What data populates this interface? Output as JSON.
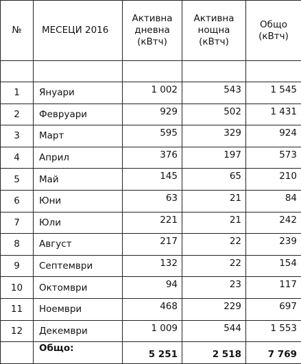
{
  "header": {
    "no": "№",
    "month": "МЕСЕЦИ 2016",
    "day_line1": "Активна",
    "day_line2": "дневна",
    "day_line3": "(кВтч)",
    "night_line1": "Активна",
    "night_line2": "нощна",
    "night_line3": "(кВтч)",
    "total_line1": "Общо",
    "total_line2": "(кВтч)"
  },
  "rows": [
    {
      "no": "1",
      "month": "Януари",
      "day": "1 002",
      "night": "543",
      "total": "1 545"
    },
    {
      "no": "2",
      "month": "Февруари",
      "day": "929",
      "night": "502",
      "total": "1 431"
    },
    {
      "no": "3",
      "month": "Март",
      "day": "595",
      "night": "329",
      "total": "924"
    },
    {
      "no": "4",
      "month": "Април",
      "day": "376",
      "night": "197",
      "total": "573"
    },
    {
      "no": "5",
      "month": "Май",
      "day": "145",
      "night": "65",
      "total": "210"
    },
    {
      "no": "6",
      "month": "Юни",
      "day": "63",
      "night": "21",
      "total": "84"
    },
    {
      "no": "7",
      "month": "Юли",
      "day": "221",
      "night": "21",
      "total": "242"
    },
    {
      "no": "8",
      "month": "Август",
      "day": "217",
      "night": "22",
      "total": "239"
    },
    {
      "no": "9",
      "month": "Септември",
      "day": "132",
      "night": "22",
      "total": "154"
    },
    {
      "no": "10",
      "month": "Октомври",
      "day": "94",
      "night": "23",
      "total": "117"
    },
    {
      "no": "11",
      "month": "Ноември",
      "day": "468",
      "night": "229",
      "total": "697"
    },
    {
      "no": "12",
      "month": "Декември",
      "day": "1 009",
      "night": "544",
      "total": "1 553"
    }
  ],
  "totals": {
    "label": "Общо:",
    "day": "5 251",
    "night": "2 518",
    "total": "7 769"
  }
}
